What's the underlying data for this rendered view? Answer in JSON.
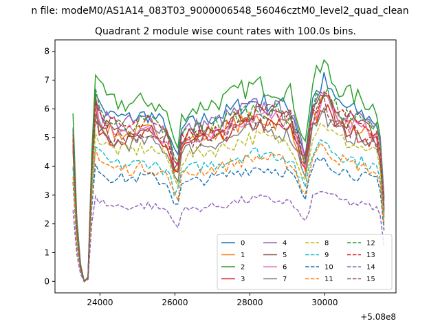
{
  "suptitle": "n file: modeM0/AS1A14_083T03_9000006548_56046cztM0_level2_quad_clean",
  "chart_data": {
    "type": "line",
    "title": "Quadrant 2 module wise count rates with 100.0s bins.",
    "xlabel": "",
    "ylabel": "",
    "x_offset_label": "+5.08e8",
    "xlim": [
      22800,
      31900
    ],
    "ylim": [
      -0.4,
      8.4
    ],
    "x_ticks": [
      24000,
      26000,
      28000,
      30000
    ],
    "y_ticks": [
      0,
      1,
      2,
      3,
      4,
      5,
      6,
      7,
      8
    ],
    "grid": false,
    "legend_position": "lower-right",
    "legend_columns": 4,
    "knots": {
      "x": [
        23280,
        23380,
        23480,
        23580,
        23680,
        23850,
        23950,
        24300,
        24800,
        25300,
        25800,
        26050,
        26200,
        26700,
        27300,
        27700,
        28200,
        28700,
        29100,
        29480,
        29650,
        29900,
        30000,
        30200,
        30600,
        31000,
        31300,
        31450,
        31580
      ],
      "norm": [
        0.75,
        0.3,
        0.08,
        0.0,
        0.02,
        1.0,
        0.88,
        0.82,
        0.81,
        0.83,
        0.77,
        0.58,
        0.77,
        0.8,
        0.83,
        0.87,
        0.9,
        0.88,
        0.86,
        0.63,
        0.9,
        0.97,
        1.0,
        0.91,
        0.86,
        0.83,
        0.8,
        0.78,
        0.4
      ]
    },
    "series": [
      {
        "name": "0",
        "level": 7.0,
        "color": "#1f77b4",
        "style": "solid"
      },
      {
        "name": "1",
        "level": 6.3,
        "color": "#ff7f0e",
        "style": "solid"
      },
      {
        "name": "2",
        "level": 7.6,
        "color": "#2ca02c",
        "style": "solid"
      },
      {
        "name": "3",
        "level": 6.1,
        "color": "#d62728",
        "style": "solid"
      },
      {
        "name": "4",
        "level": 6.8,
        "color": "#9467bd",
        "style": "solid"
      },
      {
        "name": "5",
        "level": 6.5,
        "color": "#8c564b",
        "style": "solid"
      },
      {
        "name": "6",
        "level": 6.4,
        "color": "#e377c2",
        "style": "solid"
      },
      {
        "name": "7",
        "level": 5.9,
        "color": "#7f7f7f",
        "style": "solid"
      },
      {
        "name": "8",
        "level": 5.6,
        "color": "#bcbd22",
        "style": "dashed"
      },
      {
        "name": "9",
        "level": 5.0,
        "color": "#17becf",
        "style": "dashed"
      },
      {
        "name": "10",
        "level": 4.4,
        "color": "#1f77b4",
        "style": "dashed"
      },
      {
        "name": "11",
        "level": 4.8,
        "color": "#ff7f0e",
        "style": "dashed"
      },
      {
        "name": "12",
        "level": 6.7,
        "color": "#2ca02c",
        "style": "dashed"
      },
      {
        "name": "13",
        "level": 6.6,
        "color": "#d62728",
        "style": "dashed"
      },
      {
        "name": "14",
        "level": 3.2,
        "color": "#9467bd",
        "style": "dashed"
      },
      {
        "name": "15",
        "level": 6.2,
        "color": "#8c564b",
        "style": "dashed"
      }
    ]
  }
}
